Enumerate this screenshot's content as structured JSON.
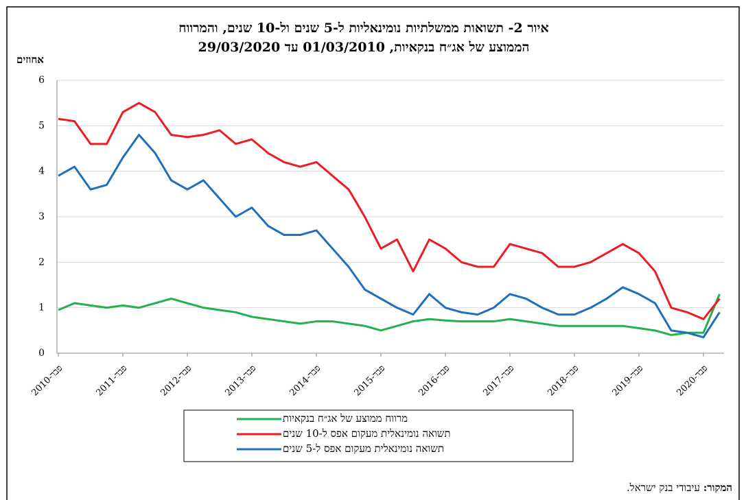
{
  "chart_data": {
    "type": "line",
    "title": "איור 2- תשואות ממשלתיות נומינאליות ל-5 שנים ול-10 שנים, והמרווח",
    "subtitle": "הממוצע של אג״ח בנקאיות, 01/03/2010 עד 29/03/2020",
    "y_label": "אחוזים",
    "source_label": "המקור:",
    "source": "עיבודי בנק ישראל.",
    "categories": [
      "פבר-2010",
      null,
      null,
      null,
      "פבר-2011",
      null,
      null,
      null,
      "פבר-2012",
      null,
      null,
      null,
      "פבר-2013",
      null,
      null,
      null,
      "פבר-2014",
      null,
      null,
      null,
      "פבר-2015",
      null,
      null,
      null,
      "פבר-2016",
      null,
      null,
      null,
      "פבר-2017",
      null,
      null,
      null,
      "פבר-2018",
      null,
      null,
      null,
      "פבר-2019",
      null,
      null,
      null,
      "פבר-2020",
      null
    ],
    "series": [
      {
        "name": "מרווח ממוצע של אג״ח בנקאיות",
        "color": "#22b14c",
        "values": [
          0.95,
          1.1,
          1.05,
          1.0,
          1.05,
          1.0,
          1.1,
          1.2,
          1.1,
          1.0,
          0.95,
          0.9,
          0.8,
          0.75,
          0.7,
          0.65,
          0.7,
          0.7,
          0.65,
          0.6,
          0.5,
          0.6,
          0.7,
          0.75,
          0.72,
          0.7,
          0.7,
          0.7,
          0.75,
          0.7,
          0.65,
          0.6,
          0.6,
          0.6,
          0.6,
          0.6,
          0.55,
          0.5,
          0.4,
          0.45,
          0.45,
          1.3
        ]
      },
      {
        "name": "תשואה נומינאלית מעקום אפס ל-10 שנים",
        "color": "#ed1c24",
        "values": [
          5.15,
          5.1,
          4.6,
          4.6,
          5.3,
          5.5,
          5.3,
          4.8,
          4.75,
          4.8,
          4.9,
          4.6,
          4.7,
          4.4,
          4.2,
          4.1,
          4.2,
          3.9,
          3.6,
          3.0,
          2.3,
          2.5,
          1.8,
          2.5,
          2.3,
          2.0,
          1.9,
          1.9,
          2.4,
          2.3,
          2.2,
          1.9,
          1.9,
          2.0,
          2.2,
          2.4,
          2.2,
          1.8,
          1.0,
          0.9,
          0.75,
          1.2
        ]
      },
      {
        "name": "תשואה נומינאלית מעקום אפס ל-5 שנים",
        "color": "#1f6fbf",
        "values": [
          3.9,
          4.1,
          3.6,
          3.7,
          4.3,
          4.8,
          4.4,
          3.8,
          3.6,
          3.8,
          3.4,
          3.0,
          3.2,
          2.8,
          2.6,
          2.6,
          2.7,
          2.3,
          1.9,
          1.4,
          1.2,
          1.0,
          0.85,
          1.3,
          1.0,
          0.9,
          0.85,
          1.0,
          1.3,
          1.2,
          1.0,
          0.85,
          0.85,
          1.0,
          1.2,
          1.45,
          1.3,
          1.1,
          0.5,
          0.45,
          0.35,
          0.9
        ]
      }
    ],
    "ylim": [
      0,
      6
    ],
    "yticks": [
      0,
      1,
      2,
      3,
      4,
      5,
      6
    ],
    "grid": true
  }
}
